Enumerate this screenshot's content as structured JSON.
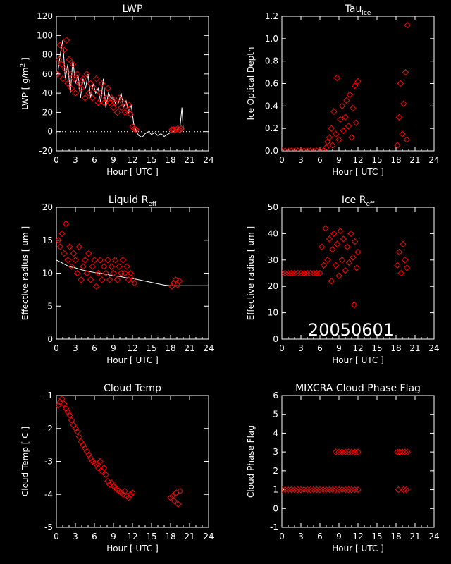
{
  "date_stamp": "20050601",
  "colors": {
    "background": "#000000",
    "axes": "#ffffff",
    "marker": "#ff0000",
    "line": "#ffffff"
  },
  "chart_data": [
    {
      "id": "lwp",
      "type": "scatter",
      "title": "LWP",
      "title_sub": "",
      "ylabel_parts": [
        "LWP [ g/m",
        "2",
        " ]"
      ],
      "xlabel": "Hour [ UTC ]",
      "xlim": [
        0,
        24
      ],
      "ylim": [
        -20,
        120
      ],
      "xticks": [
        0,
        3,
        6,
        9,
        12,
        15,
        18,
        21,
        24
      ],
      "yticks": [
        -20,
        0,
        20,
        40,
        60,
        80,
        100,
        120
      ],
      "zero_line": true,
      "line_series": {
        "name": "",
        "x": [
          0.2,
          0.6,
          1.0,
          1.4,
          1.8,
          2.2,
          2.6,
          3.0,
          3.4,
          3.8,
          4.2,
          4.6,
          5.0,
          5.4,
          5.8,
          6.2,
          6.6,
          7.0,
          7.4,
          7.8,
          8.2,
          8.6,
          9.0,
          9.4,
          9.8,
          10.2,
          10.6,
          11.0,
          11.4,
          11.8,
          12.2,
          12.6,
          13.0,
          13.5,
          14.0,
          14.5,
          15.0,
          15.5,
          16.0,
          16.5,
          17.0,
          17.5,
          18.0,
          18.5,
          19.0,
          19.5,
          19.8,
          20.0
        ],
        "y": [
          60,
          80,
          95,
          55,
          70,
          40,
          75,
          50,
          60,
          35,
          55,
          45,
          60,
          35,
          50,
          40,
          45,
          30,
          55,
          25,
          40,
          35,
          35,
          28,
          30,
          40,
          25,
          32,
          20,
          28,
          8,
          0,
          -4,
          -6,
          -2,
          0,
          -3,
          -1,
          -4,
          -2,
          -5,
          -3,
          -1,
          0,
          2,
          5,
          25,
          3
        ]
      },
      "markers": {
        "name": "",
        "x": [
          0.2,
          0.4,
          0.6,
          0.8,
          1.0,
          1.2,
          1.4,
          1.6,
          1.8,
          2.0,
          2.2,
          2.4,
          2.6,
          2.8,
          3.0,
          3.3,
          3.6,
          3.9,
          4.2,
          4.5,
          4.8,
          5.1,
          5.4,
          5.7,
          6.0,
          6.3,
          6.6,
          6.9,
          7.2,
          7.5,
          7.8,
          8.1,
          8.4,
          8.7,
          9.0,
          9.3,
          9.6,
          9.9,
          10.2,
          10.5,
          10.8,
          11.1,
          11.4,
          11.7,
          12.0,
          12.3,
          12.6,
          18.2,
          18.5,
          18.8,
          19.1,
          19.4,
          19.7
        ],
        "y": [
          60,
          75,
          90,
          70,
          55,
          85,
          65,
          95,
          50,
          75,
          60,
          45,
          70,
          55,
          40,
          60,
          50,
          45,
          55,
          35,
          60,
          40,
          50,
          35,
          45,
          55,
          30,
          40,
          50,
          30,
          35,
          45,
          30,
          35,
          25,
          30,
          20,
          35,
          25,
          30,
          20,
          22,
          28,
          18,
          5,
          3,
          2,
          2,
          2,
          2,
          3,
          2,
          3
        ]
      }
    },
    {
      "id": "tau_ice",
      "type": "scatter",
      "title": "Tau",
      "title_sub": "ice",
      "ylabel_parts": [
        "Ice Optical Depth"
      ],
      "xlabel": "Hour [ UTC ]",
      "xlim": [
        0,
        24
      ],
      "ylim": [
        0,
        1.2
      ],
      "xticks": [
        0,
        3,
        6,
        9,
        12,
        15,
        18,
        21,
        24
      ],
      "yticks": [
        0.0,
        0.2,
        0.4,
        0.6,
        0.8,
        1.0,
        1.2
      ],
      "ytick_labels": [
        "0.0",
        "0.2",
        "0.4",
        "0.6",
        "0.8",
        "1.0",
        "1.2"
      ],
      "markers": {
        "name": "",
        "x": [
          0.0,
          0.5,
          1.0,
          1.5,
          2.0,
          2.5,
          3.0,
          3.5,
          4.0,
          4.5,
          5.0,
          5.5,
          6.0,
          6.5,
          7.0,
          7.2,
          7.5,
          7.8,
          8.0,
          8.2,
          8.5,
          8.7,
          9.0,
          9.2,
          9.5,
          9.7,
          10.0,
          10.2,
          10.5,
          10.7,
          11.0,
          11.2,
          11.5,
          11.7,
          12.0,
          18.2,
          18.5,
          18.7,
          19.0,
          19.2,
          19.5,
          19.7,
          19.8
        ],
        "y": [
          0,
          0,
          0,
          0,
          0,
          0,
          0,
          0,
          0,
          0,
          0,
          0,
          0,
          0,
          0.03,
          0.08,
          0.12,
          0.2,
          0.05,
          0.35,
          0.15,
          0.65,
          0.1,
          0.28,
          0.4,
          0.18,
          0.3,
          0.45,
          0.22,
          0.5,
          0.12,
          0.38,
          0.58,
          0.25,
          0.62,
          0.05,
          0.3,
          0.6,
          0.15,
          0.42,
          0.7,
          0.1,
          1.12
        ]
      }
    },
    {
      "id": "liquid_reff",
      "type": "scatter",
      "title": "Liquid R",
      "title_sub": "eff",
      "ylabel_parts": [
        "Effective radius [ um ]"
      ],
      "xlabel": "Hour [ UTC ]",
      "xlim": [
        0,
        24
      ],
      "ylim": [
        0,
        20
      ],
      "xticks": [
        0,
        3,
        6,
        9,
        12,
        15,
        18,
        21,
        24
      ],
      "yticks": [
        0,
        5,
        10,
        15,
        20
      ],
      "line_series": {
        "name": "",
        "x": [
          0,
          1,
          2,
          3,
          4,
          5,
          6,
          7,
          8,
          9,
          10,
          11,
          12,
          13,
          14,
          15,
          16,
          17,
          18,
          19,
          20,
          21,
          22,
          23,
          24
        ],
        "y": [
          12,
          11.5,
          11,
          10.8,
          10.5,
          10.3,
          10.1,
          10,
          9.8,
          9.6,
          9.5,
          9.3,
          9.2,
          9.0,
          8.8,
          8.6,
          8.4,
          8.2,
          8.1,
          8.1,
          8.1,
          8.1,
          8.1,
          8.1,
          8.1
        ]
      },
      "markers": {
        "name": "",
        "x": [
          0.3,
          0.6,
          0.9,
          1.2,
          1.5,
          1.8,
          2.1,
          2.4,
          2.7,
          3.0,
          3.3,
          3.6,
          3.9,
          4.2,
          4.5,
          4.8,
          5.1,
          5.4,
          5.7,
          6.0,
          6.3,
          6.6,
          6.9,
          7.2,
          7.5,
          7.8,
          8.1,
          8.4,
          8.7,
          9.0,
          9.3,
          9.6,
          9.9,
          10.2,
          10.5,
          10.8,
          11.1,
          11.4,
          11.7,
          12.0,
          12.3,
          18.2,
          18.5,
          18.8,
          19.1,
          19.4
        ],
        "y": [
          15,
          14,
          16,
          13,
          17.5,
          12,
          14,
          11,
          13,
          12,
          10,
          14,
          9,
          11,
          12,
          10,
          13,
          9,
          11,
          12,
          8,
          10,
          12,
          9,
          11,
          10,
          12,
          9,
          11,
          10,
          12,
          9,
          11,
          10,
          12,
          10,
          11,
          9,
          10,
          9,
          8.5,
          8,
          8.5,
          9,
          8.2,
          8.8
        ]
      }
    },
    {
      "id": "ice_reff",
      "type": "scatter",
      "title": "Ice R",
      "title_sub": "eff",
      "ylabel_parts": [
        "Effective radius [ um ]"
      ],
      "xlabel": "Hour [ UTC ]",
      "xlim": [
        0,
        24
      ],
      "ylim": [
        0,
        50
      ],
      "xticks": [
        0,
        3,
        6,
        9,
        12,
        15,
        18,
        21,
        24
      ],
      "yticks": [
        0,
        10,
        20,
        30,
        40,
        50
      ],
      "markers": {
        "name": "",
        "x": [
          0.0,
          0.5,
          1.0,
          1.5,
          2.0,
          2.5,
          3.0,
          3.5,
          4.0,
          4.5,
          5.0,
          5.5,
          6.0,
          6.3,
          6.6,
          6.9,
          7.2,
          7.5,
          7.8,
          8.0,
          8.2,
          8.5,
          8.7,
          9.0,
          9.2,
          9.5,
          9.7,
          10.0,
          10.3,
          10.6,
          10.9,
          11.2,
          11.5,
          11.8,
          12.0,
          11.4,
          18.2,
          18.5,
          18.8,
          19.1,
          19.4,
          19.7
        ],
        "y": [
          25,
          25,
          25,
          25,
          25,
          25,
          25,
          25,
          25,
          25,
          25,
          25,
          25,
          35,
          28,
          42,
          30,
          38,
          22,
          34,
          40,
          28,
          36,
          24,
          41,
          30,
          38,
          26,
          35,
          29,
          40,
          31,
          37,
          27,
          33,
          13,
          28,
          33,
          25,
          36,
          30,
          27
        ]
      }
    },
    {
      "id": "cloud_temp",
      "type": "scatter",
      "title": "Cloud Temp",
      "title_sub": "",
      "ylabel_parts": [
        "Cloud Temp [ C ]"
      ],
      "xlabel": "Hour [ UTC ]",
      "xlim": [
        0,
        24
      ],
      "ylim": [
        -5,
        -1
      ],
      "xticks": [
        0,
        3,
        6,
        9,
        12,
        15,
        18,
        21,
        24
      ],
      "yticks": [
        -5,
        -4,
        -3,
        -2,
        -1
      ],
      "markers": {
        "name": "",
        "x": [
          0.3,
          0.6,
          0.9,
          1.2,
          1.5,
          1.8,
          2.1,
          2.4,
          2.7,
          3.0,
          3.3,
          3.6,
          3.9,
          4.2,
          4.5,
          4.8,
          5.1,
          5.4,
          5.7,
          6.0,
          6.3,
          6.6,
          6.9,
          7.2,
          7.5,
          7.8,
          8.1,
          8.4,
          8.7,
          9.0,
          9.3,
          9.6,
          9.9,
          10.2,
          10.5,
          10.8,
          11.1,
          11.4,
          11.7,
          12.0,
          18.0,
          18.3,
          18.6,
          18.9,
          19.2,
          19.5
        ],
        "y": [
          -1.3,
          -1.2,
          -1.1,
          -1.25,
          -1.4,
          -1.5,
          -1.6,
          -1.75,
          -1.9,
          -2.0,
          -2.1,
          -2.25,
          -2.4,
          -2.5,
          -2.6,
          -2.7,
          -2.8,
          -2.9,
          -3.0,
          -3.05,
          -3.1,
          -3.2,
          -3.0,
          -3.3,
          -3.2,
          -3.4,
          -3.6,
          -3.7,
          -3.65,
          -3.75,
          -3.8,
          -3.85,
          -3.9,
          -3.95,
          -4.0,
          -3.9,
          -4.05,
          -4.1,
          -4.0,
          -3.95,
          -4.1,
          -4.05,
          -4.2,
          -3.95,
          -4.3,
          -3.9
        ]
      }
    },
    {
      "id": "phase_flag",
      "type": "scatter",
      "title": "MIXCRA Cloud Phase Flag",
      "title_sub": "",
      "ylabel_parts": [
        "Cloud Phase Flag"
      ],
      "xlabel": "Hour [ UTC ]",
      "xlim": [
        0,
        24
      ],
      "ylim": [
        -1,
        6
      ],
      "xticks": [
        0,
        3,
        6,
        9,
        12,
        15,
        18,
        21,
        24
      ],
      "yticks": [
        -1,
        0,
        1,
        2,
        3,
        4,
        5,
        6
      ],
      "markers": {
        "name": "",
        "x": [
          0.0,
          0.5,
          1.0,
          1.5,
          2.0,
          2.5,
          3.0,
          3.5,
          4.0,
          4.5,
          5.0,
          5.5,
          6.0,
          6.5,
          7.0,
          7.5,
          8.0,
          8.5,
          9.0,
          9.5,
          10.0,
          10.5,
          11.0,
          11.5,
          12.0,
          8.5,
          9.0,
          9.5,
          10.0,
          10.5,
          11.0,
          11.5,
          12.0,
          18.2,
          18.6,
          19.0,
          19.4,
          19.8,
          18.4,
          19.2,
          19.6
        ],
        "y": [
          1,
          1,
          1,
          1,
          1,
          1,
          1,
          1,
          1,
          1,
          1,
          1,
          1,
          1,
          1,
          1,
          1,
          1,
          1,
          1,
          1,
          1,
          1,
          1,
          1,
          3,
          3,
          3,
          3,
          3,
          3,
          3,
          3,
          3,
          3,
          3,
          3,
          3,
          1,
          1,
          1
        ]
      }
    }
  ]
}
